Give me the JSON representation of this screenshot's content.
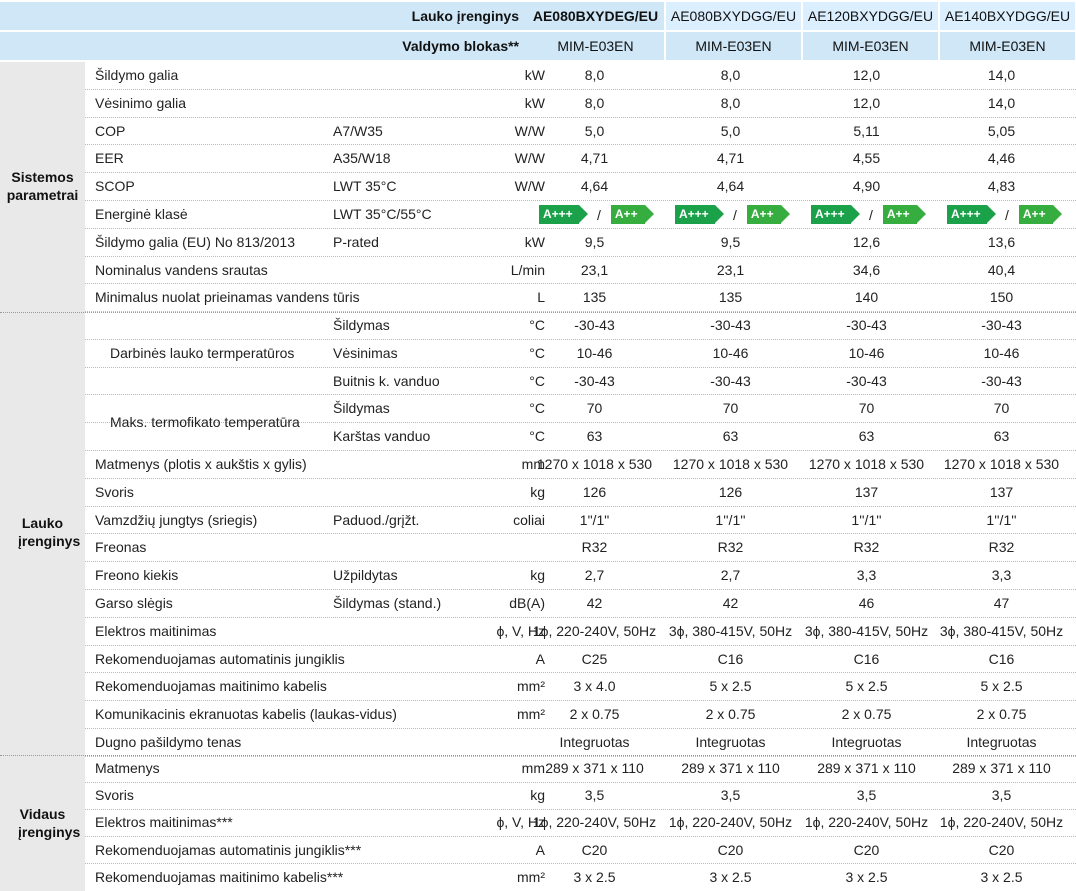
{
  "header": {
    "outdoor_label": "Lauko įrenginys",
    "control_label": "Valdymo blokas**",
    "models": [
      "AE080BXYDEG/EU",
      "AE080BXYDGG/EU",
      "AE120BXYDGG/EU",
      "AE140BXYDGG/EU"
    ],
    "controls": [
      "MIM-E03EN",
      "MIM-E03EN",
      "MIM-E03EN",
      "MIM-E03EN"
    ]
  },
  "sections": {
    "system": "Sistemos parametrai",
    "outdoor": "Lauko įrenginys",
    "indoor": "Vidaus įrenginys"
  },
  "system_rows": [
    {
      "name": "Šildymo galia",
      "cond": "",
      "unit": "kW",
      "values": [
        "8,0",
        "8,0",
        "12,0",
        "14,0"
      ]
    },
    {
      "name": "Vėsinimo galia",
      "cond": "",
      "unit": "kW",
      "values": [
        "8,0",
        "8,0",
        "12,0",
        "14,0"
      ]
    },
    {
      "name": "COP",
      "cond": "A7/W35",
      "unit": "W/W",
      "values": [
        "5,0",
        "5,0",
        "5,11",
        "5,05"
      ]
    },
    {
      "name": "EER",
      "cond": "A35/W18",
      "unit": "W/W",
      "values": [
        "4,71",
        "4,71",
        "4,55",
        "4,46"
      ]
    },
    {
      "name": "SCOP",
      "cond": "LWT 35°C",
      "unit": "W/W",
      "values": [
        "4,64",
        "4,64",
        "4,90",
        "4,83"
      ]
    },
    {
      "name": "Energinė klasė",
      "cond": "LWT 35°C/55°C",
      "unit": "",
      "values": [
        "",
        "",
        "",
        ""
      ]
    },
    {
      "name": "Šildymo galia (EU) No 813/2013",
      "cond": "P-rated",
      "unit": "kW",
      "values": [
        "9,5",
        "9,5",
        "12,6",
        "13,6"
      ]
    },
    {
      "name": "Nominalus vandens srautas",
      "cond": "",
      "unit": "L/min",
      "values": [
        "23,1",
        "23,1",
        "34,6",
        "40,4"
      ]
    },
    {
      "name": "Minimalus nuolat prieinamas vandens tūris",
      "cond": "",
      "unit": "L",
      "values": [
        "135",
        "135",
        "140",
        "150"
      ]
    }
  ],
  "energy_class": {
    "class1": "A+++",
    "slash": "/",
    "class2": "A++"
  },
  "outdoor_groups": {
    "operating": "Darbinės lauko termperatūros",
    "max_temp": "Maks. termofikato temperatūra"
  },
  "outdoor_rows": [
    {
      "name": "",
      "cond": "Šildymas",
      "unit": "°C",
      "values": [
        "-30-43",
        "-30-43",
        "-30-43",
        "-30-43"
      ]
    },
    {
      "name": "",
      "cond": "Vėsinimas",
      "unit": "°C",
      "values": [
        "10-46",
        "10-46",
        "10-46",
        "10-46"
      ]
    },
    {
      "name": "",
      "cond": "Buitnis k. vanduo",
      "unit": "°C",
      "values": [
        "-30-43",
        "-30-43",
        "-30-43",
        "-30-43"
      ]
    },
    {
      "name": "",
      "cond": "Šildymas",
      "unit": "°C",
      "values": [
        "70",
        "70",
        "70",
        "70"
      ]
    },
    {
      "name": "",
      "cond": "Karštas vanduo",
      "unit": "°C",
      "values": [
        "63",
        "63",
        "63",
        "63"
      ]
    },
    {
      "name": "Matmenys (plotis x aukštis x gylis)",
      "cond": "",
      "unit": "mm",
      "values": [
        "1270 x 1018 x 530",
        "1270 x 1018 x 530",
        "1270 x 1018 x 530",
        "1270 x 1018 x 530"
      ]
    },
    {
      "name": "Svoris",
      "cond": "",
      "unit": "kg",
      "values": [
        "126",
        "126",
        "137",
        "137"
      ]
    },
    {
      "name": "Vamzdžių jungtys (sriegis)",
      "cond": "Paduod./grįžt.",
      "unit": "coliai",
      "values": [
        "1\"/1\"",
        "1''/1''",
        "1''/1''",
        "1''/1''"
      ]
    },
    {
      "name": "Freonas",
      "cond": "",
      "unit": "",
      "values": [
        "R32",
        "R32",
        "R32",
        "R32"
      ]
    },
    {
      "name": "Freono kiekis",
      "cond": "Užpildytas",
      "unit": "kg",
      "values": [
        "2,7",
        "2,7",
        "3,3",
        "3,3"
      ]
    },
    {
      "name": "Garso slėgis",
      "cond": "Šildymas (stand.)",
      "unit": "dB(A)",
      "values": [
        "42",
        "42",
        "46",
        "47"
      ]
    },
    {
      "name": "Elektros maitinimas",
      "cond": "",
      "unit": "ϕ, V, Hz",
      "values": [
        "1ϕ, 220-240V, 50Hz",
        "3ϕ, 380-415V, 50Hz",
        "3ϕ, 380-415V, 50Hz",
        "3ϕ, 380-415V, 50Hz"
      ]
    },
    {
      "name": "Rekomenduojamas automatinis jungiklis",
      "cond": "",
      "unit": "A",
      "values": [
        "C25",
        "C16",
        "C16",
        "C16"
      ]
    },
    {
      "name": "Rekomenduojamas maitinimo kabelis",
      "cond": "",
      "unit": "mm²",
      "values": [
        "3 x 4.0",
        "5 x 2.5",
        "5 x 2.5",
        "5 x 2.5"
      ]
    },
    {
      "name": "Komunikacinis ekranuotas kabelis (laukas-vidus)",
      "cond": "",
      "unit": "mm²",
      "values": [
        "2 x 0.75",
        "2 x 0.75",
        "2 x 0.75",
        "2 x 0.75"
      ]
    },
    {
      "name": "Dugno pašildymo tenas",
      "cond": "",
      "unit": "",
      "values": [
        "Integruotas",
        "Integruotas",
        "Integruotas",
        "Integruotas"
      ]
    }
  ],
  "indoor_rows": [
    {
      "name": "Matmenys",
      "cond": "",
      "unit": "mm",
      "values": [
        "289 x 371 x 110",
        "289 x 371 x 110",
        "289 x 371 x 110",
        "289 x 371 x 110"
      ]
    },
    {
      "name": "Svoris",
      "cond": "",
      "unit": "kg",
      "values": [
        "3,5",
        "3,5",
        "3,5",
        "3,5"
      ]
    },
    {
      "name": "Elektros maitinimas***",
      "cond": "",
      "unit": "ϕ, V, Hz",
      "values": [
        "1ϕ, 220-240V, 50Hz",
        "1ϕ, 220-240V, 50Hz",
        "1ϕ, 220-240V, 50Hz",
        "1ϕ, 220-240V, 50Hz"
      ]
    },
    {
      "name": "Rekomenduojamas automatinis jungiklis***",
      "cond": "",
      "unit": "A",
      "values": [
        "C20",
        "C20",
        "C20",
        "C20"
      ]
    },
    {
      "name": "Rekomenduojamas maitinimo kabelis***",
      "cond": "",
      "unit": "mm²",
      "values": [
        "3 x 2.5",
        "3 x 2.5",
        "3 x 2.5",
        "3 x 2.5"
      ]
    }
  ]
}
